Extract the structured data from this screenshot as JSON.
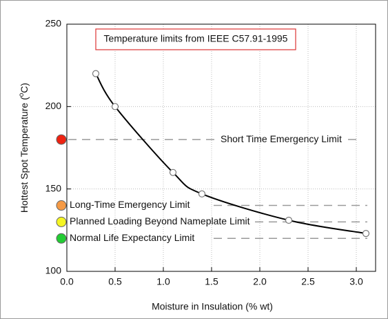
{
  "chart_data": {
    "type": "line",
    "annotation": "Temperature limits from IEEE C57.91-1995",
    "x_label": "Moisture in Insulation (% wt)",
    "y_label": {
      "pre": "Hottest Spot Temperature (",
      "sup": "o",
      "post": "C)"
    },
    "x": [
      0.3,
      0.5,
      1.1,
      1.4,
      2.3,
      3.1
    ],
    "series": [
      {
        "color": "#000000",
        "values": [
          220,
          200,
          160,
          147,
          131,
          123
        ]
      }
    ],
    "limits": [
      {
        "label": "Short Time Emergency Limit",
        "value": 180,
        "color": "#ee2211"
      },
      {
        "label": "Long-Time Emergency Limit",
        "value": 140,
        "color": "#f59a45"
      },
      {
        "label": "Planned Loading Beyond Nameplate Limit",
        "value": 130,
        "color": "#f5f522"
      },
      {
        "label": "Normal Life Expectancy Limit",
        "value": 120,
        "color": "#22cc33"
      }
    ],
    "xlim": [
      0,
      3.2
    ],
    "ylim": [
      100,
      250
    ],
    "xticks": [
      {
        "value": 0,
        "label": "0.0"
      },
      0.5,
      {
        "value": 1,
        "label": "1.0"
      },
      1.5,
      {
        "value": 2,
        "label": "2.0"
      },
      2.5,
      {
        "value": 3,
        "label": "3.0"
      }
    ],
    "yticks": [
      100,
      150,
      200,
      250
    ],
    "grid": true
  }
}
